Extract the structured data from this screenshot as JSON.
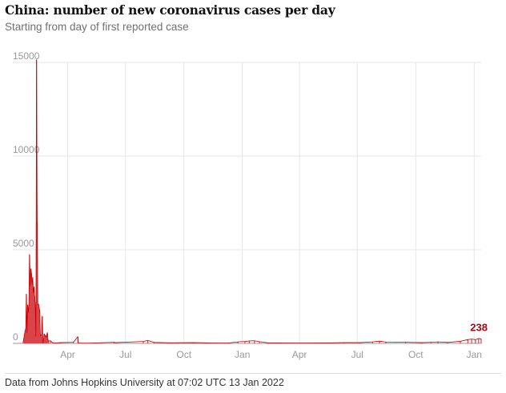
{
  "title": "China: number of new coronavirus cases per day",
  "subtitle": "Starting from day of first reported case",
  "source": "Data from Johns Hopkins University at 07:02 UTC 13 Jan 2022",
  "colors": {
    "series": "#c70000",
    "fill": "#d9454a",
    "end_label": "#ab0613",
    "grid": "#e6e6e6"
  },
  "chart_data": {
    "type": "area",
    "title": "China: number of new coronavirus cases per day",
    "subtitle": "Starting from day of first reported case",
    "xlabel": "",
    "ylabel": "",
    "ylim": [
      0,
      15000
    ],
    "yticks": [
      {
        "value": 0,
        "label": "0"
      },
      {
        "value": 5000,
        "label": "5000"
      },
      {
        "value": 10000,
        "label": "10000"
      },
      {
        "value": 15000,
        "label": "15000"
      }
    ],
    "xlim": [
      "2020-01-22",
      "2022-01-12"
    ],
    "xticks": [
      {
        "date": "2020-04-01",
        "label": "Apr"
      },
      {
        "date": "2020-07-01",
        "label": "Jul"
      },
      {
        "date": "2020-10-01",
        "label": "Oct"
      },
      {
        "date": "2021-01-01",
        "label": "Jan"
      },
      {
        "date": "2021-04-01",
        "label": "Apr"
      },
      {
        "date": "2021-07-01",
        "label": "Jul"
      },
      {
        "date": "2021-10-01",
        "label": "Oct"
      },
      {
        "date": "2022-01-01",
        "label": "Jan"
      }
    ],
    "grid": true,
    "end_label": "238",
    "series": [
      {
        "points": [
          [
            "2020-01-22",
            95
          ],
          [
            "2020-01-23",
            277
          ],
          [
            "2020-01-24",
            486
          ],
          [
            "2020-01-25",
            669
          ],
          [
            "2020-01-26",
            802
          ],
          [
            "2020-01-27",
            2632
          ],
          [
            "2020-01-28",
            578
          ],
          [
            "2020-01-29",
            2054
          ],
          [
            "2020-01-30",
            1661
          ],
          [
            "2020-01-31",
            2089
          ],
          [
            "2020-02-01",
            4739
          ],
          [
            "2020-02-02",
            3086
          ],
          [
            "2020-02-03",
            3991
          ],
          [
            "2020-02-04",
            3733
          ],
          [
            "2020-02-05",
            3147
          ],
          [
            "2020-02-06",
            3523
          ],
          [
            "2020-02-07",
            2704
          ],
          [
            "2020-02-08",
            3015
          ],
          [
            "2020-02-09",
            2525
          ],
          [
            "2020-02-10",
            2032
          ],
          [
            "2020-02-11",
            373
          ],
          [
            "2020-02-12",
            15136
          ],
          [
            "2020-02-13",
            6463
          ],
          [
            "2020-02-14",
            2055
          ],
          [
            "2020-02-15",
            2100
          ],
          [
            "2020-02-16",
            1921
          ],
          [
            "2020-02-17",
            1777
          ],
          [
            "2020-02-18",
            408
          ],
          [
            "2020-02-19",
            458
          ],
          [
            "2020-02-20",
            473
          ],
          [
            "2020-02-21",
            1451
          ],
          [
            "2020-02-22",
            21
          ],
          [
            "2020-02-23",
            219
          ],
          [
            "2020-02-24",
            513
          ],
          [
            "2020-02-25",
            412
          ],
          [
            "2020-02-26",
            434
          ],
          [
            "2020-02-27",
            328
          ],
          [
            "2020-02-28",
            427
          ],
          [
            "2020-02-29",
            573
          ],
          [
            "2020-03-01",
            202
          ],
          [
            "2020-03-02",
            125
          ],
          [
            "2020-03-05",
            140
          ],
          [
            "2020-03-08",
            40
          ],
          [
            "2020-03-12",
            20
          ],
          [
            "2020-03-20",
            40
          ],
          [
            "2020-04-10",
            60
          ],
          [
            "2020-04-17",
            360
          ],
          [
            "2020-04-18",
            20
          ],
          [
            "2020-05-01",
            10
          ],
          [
            "2020-06-13",
            60
          ],
          [
            "2020-06-15",
            40
          ],
          [
            "2020-07-29",
            100
          ],
          [
            "2020-08-05",
            160
          ],
          [
            "2020-08-15",
            50
          ],
          [
            "2020-09-10",
            30
          ],
          [
            "2020-10-15",
            40
          ],
          [
            "2020-11-15",
            20
          ],
          [
            "2020-12-10",
            20
          ],
          [
            "2020-12-25",
            80
          ],
          [
            "2021-01-05",
            100
          ],
          [
            "2021-01-12",
            130
          ],
          [
            "2021-01-20",
            140
          ],
          [
            "2021-01-28",
            90
          ],
          [
            "2021-02-10",
            30
          ],
          [
            "2021-03-15",
            20
          ],
          [
            "2021-04-20",
            20
          ],
          [
            "2021-05-25",
            30
          ],
          [
            "2021-06-10",
            40
          ],
          [
            "2021-07-05",
            40
          ],
          [
            "2021-07-25",
            80
          ],
          [
            "2021-08-05",
            120
          ],
          [
            "2021-08-15",
            70
          ],
          [
            "2021-09-15",
            60
          ],
          [
            "2021-10-10",
            40
          ],
          [
            "2021-10-25",
            60
          ],
          [
            "2021-11-05",
            80
          ],
          [
            "2021-11-20",
            50
          ],
          [
            "2021-12-10",
            110
          ],
          [
            "2021-12-22",
            200
          ],
          [
            "2021-12-28",
            230
          ],
          [
            "2022-01-03",
            200
          ],
          [
            "2022-01-08",
            260
          ],
          [
            "2022-01-12",
            238
          ]
        ]
      }
    ]
  }
}
